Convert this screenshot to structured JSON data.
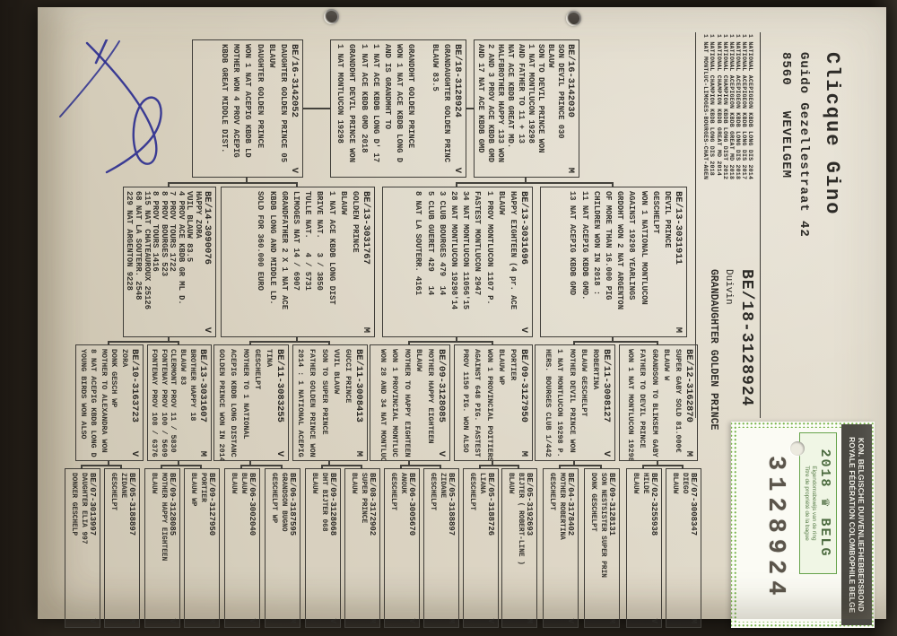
{
  "owner": {
    "name": "Clicque Gino",
    "address_line1": "Guido Gezellestraat 42",
    "address_line2": "8560   WEVELGEM"
  },
  "achievements": [
    "1 NATIONAL ACEPIGEON KBDB LONG DIS 2014",
    "1 NATIONAL ACEPIGEON KBDB LONG DIS 2017",
    "1 NATIONAL ACEPIGEON KBDB LONG DIS 2018",
    "1 NATIONAL ACEPIGEON KBDB GREAT MD 2018",
    "1 NATIONAL CHAMPION KBDB LONG DIST 2012",
    "1 NATIONAL CHAMPION KBDB GREAT MD 2014",
    "1 NATIONAL CHAMPION KBDB LONG DIS 2018",
    "1 NAT MONTLUC-LIMOGES-BOURGES-CHAT-AGEN"
  ],
  "bird": {
    "ring": "BE/18-3128924",
    "sex_label": "Duivin",
    "title": "GRANDAUGHTER GOLDEN PRINCE"
  },
  "sticker": {
    "federation_line1": "KON. BELGISCHE DUIVENLIEFHEBBERSBOND",
    "federation_line2": "ROYALE FÉDÉRATION COLOMBOPHILE BELGE",
    "year": "2018",
    "crest_icon": "crown-crest",
    "country": "BELG",
    "subtitle_nl": "Eigendomsbewijs van de ring",
    "subtitle_fr": "Titre de propriété de la bague",
    "ring_number": "3128924",
    "green": "#67a44c"
  },
  "ink_color": "#2c2f8f",
  "pedigree": {
    "gen1": [
      {
        "id": "BE/16-3142030",
        "sex": "M",
        "lines": [
          "SON DEVIL PRINCE 030",
          "BLAUW",
          "SON TO DEVIL PRINCE WON",
          "1 NAT MONTLUCON 19298",
          "AND FATHER TO 11 + 13",
          "NAT ACE KBDB GREAT MD.",
          "HALFBROTHER HAPPY 133 WON",
          "2 AND 3 PROV ACE KBDB GMD",
          "AND 17 NAT ACE KBDB GMD"
        ]
      },
      {
        "id": "BE/18-3128924",
        "sex": "V",
        "lines": [
          "GRANDAUGHTER GOLDEN PRINC",
          "BLAUW 83.5",
          "",
          "GRANDDHT GOLDEN PRINCE",
          "WON 1 NAT ACE KBDB LONG D",
          "AND IS GRANDMHT TO",
          "1 NAT ACE KBDB LONG D' 17",
          "1 NAT ACE KBDB GMD 2018",
          "GRANDDHT DEVIL PRINCE WON",
          "1 NAT MONTLUCON 19298"
        ]
      },
      {
        "id": "BE/16-3142052",
        "sex": "V",
        "lines": [
          "DAUGHTER GOLDEN PRINCE 05",
          "BLAUW",
          "DAUGHTER GOLDEN PRINCE",
          "WON 1 NAT ACEPIG KBDB LD",
          "MOTHER WON 4 PROV ACEPIG",
          "KBDB GREAT MIDDLE DIST."
        ]
      }
    ],
    "gen2": [
      {
        "id": "BE/13-3031911",
        "sex": "M",
        "lines": [
          "DEVIL PRINCE",
          "GESCHELPT",
          "WON 1 NATIONAL MONTLUCON",
          "AGAINST 19298 YEARLINGS",
          "GRDDHT WON 2 NAT ARGENTON",
          "OF MORE THAN 16.000 PIG",
          "CHILDREN WON IN 2018 :",
          "11 NAT ACEPIG KBDB GMD.",
          "13 NAT ACEPIG KBDB GMD"
        ]
      },
      {
        "id": "BE/13-3031696",
        "sex": "V",
        "lines": [
          "HAPPY EIGHTEEN (4 pr. ACE",
          "BLAUW",
          "1 PROV MONTLUCON 1107 P.",
          "FASTEST MONTLUCON 2947",
          "34 NAT MONTLUCON 11056'15",
          "28 NAT MONTLUCON 19298'14",
          "3 CLUB BOURGES 479  14",
          "5 CLUB GUERET 429   14",
          "8 NAT LA SOUTERR. 4161"
        ]
      },
      {
        "id": "BE/13-3031767",
        "sex": "M",
        "lines": [
          "GOLDEN PRINCE",
          "BLAUW",
          "1 NAT ACE KBDB LONG DIST",
          "BRIVE NAT.   3 / 3850",
          "TULLE NAT.   4 / 5731",
          "LIMOGES NAT 14 / 6907",
          "GRANDFATHER 2 X 1 NAT ACE",
          "KBDB LONG AND MIDDLE LD.",
          "SOLD FOR 360.000 EURO"
        ]
      },
      {
        "id": "BE/14-3090076",
        "sex": "V",
        "lines": [
          "HAPPY ZORA",
          "VUIL BLAUW 83.5",
          "4 PROV ACE KBDB GR ML D.",
          "7 PROV TOURS 1722",
          "8 PROV BOURGES 523",
          "8 PROV TOURS 1416",
          "115 NAT CHATEAUROUX 25126",
          "68 NAT LA SOUTERR. 2548",
          "229 NAT ARGENTON 9228"
        ]
      }
    ],
    "gen3": [
      {
        "id": "BE/12-3162870",
        "sex": "M",
        "lines": [
          "SUPER GABY SOLD 81.000€",
          "BLAUW W",
          "GRANDSON TO BLIKSEM GABY",
          "FATHER TO DEVIL PRINCE",
          "WON 1 NAT MONTLUCON 19298"
        ]
      },
      {
        "id": "BE/11-3008127",
        "sex": "V",
        "lines": [
          "ROBERTINA",
          "BLAUW GESCHELPT",
          "MOTHER DEVIL PRINCE WON",
          "1 NAT MONTLUCON 19298 P.",
          "HERS. BOURGES CLUB 1/442"
        ]
      },
      {
        "id": "BE/09-3127950",
        "sex": "M",
        "lines": [
          "PORTIER",
          "BLAUW WP",
          "WON 1 PROVINCIAL POITIERS",
          "AGAINST 648 PIG. FASTEST",
          "PROV 1150 PIG. WON ALSO"
        ]
      },
      {
        "id": "BE/09-3128085",
        "sex": "V",
        "lines": [
          "MOTHER HAPPY EIGHTEEN",
          "BLAUW",
          "MOTHER TO HAPPY EIGHTEEN",
          "WON 1 PROVINCIAL MONTLUC",
          "WON 28 AND 34 NAT MONTLUC"
        ]
      },
      {
        "id": "BE/11-3008413",
        "sex": "M",
        "lines": [
          "GUCCI PRINCE",
          "VUIL BLAUW",
          "SON TO SUPER PRINCE",
          "FATHER GOLDEN PRINCE WON",
          "2014 : 1 NATIONAL ACEPIG"
        ]
      },
      {
        "id": "BE/11-3083255",
        "sex": "V",
        "lines": [
          "TINA",
          "GESCHELPT",
          "MOTHER TO 1 NATIONAL",
          "ACEPIG KBDB LONG DISTANC",
          "GOLDEN PRINCE WON IN 2014"
        ]
      },
      {
        "id": "BE/13-3031607",
        "sex": "M",
        "lines": [
          "BROTHER HAPPY 18",
          "BLAUW 83",
          "CLERMONT PROV 11 / 5830",
          "FONTENAY PROV 100 / 5609",
          "FONTENAY PROV 108 / 6376"
        ]
      },
      {
        "id": "BE/10-3163723",
        "sex": "V",
        "lines": [
          "ZORA",
          "DONK GESCH WP",
          "MOTHER TO ALEXANDRA WON",
          "8 NAT ACEPIG KBDB LONG D",
          "YOUNG BIRDS WON ALSO"
        ]
      }
    ],
    "gen4": [
      {
        "id": "BE/07-3008347",
        "sex": "M",
        "lines": [
          "DIEGO",
          "BLAUW"
        ]
      },
      {
        "id": "BE/02-3255938",
        "sex": "V",
        "lines": [
          "HILDE",
          "BLAUW"
        ]
      },
      {
        "id": "BE/09-3128131",
        "sex": "M",
        "lines": [
          "SON NESTSISTER SUPER PRIN",
          "DONK GESCHELPT"
        ]
      },
      {
        "id": "BE/04-3178402",
        "sex": "V",
        "lines": [
          "MOTHER ROBERTINA",
          "GESCHELPT"
        ]
      },
      {
        "id": "BE/05-3192693",
        "sex": "M",
        "lines": [
          "BIJTER ( ROBERT-LINE )",
          "BLAUW"
        ]
      },
      {
        "id": "BE/05-3188726",
        "sex": "V",
        "lines": [
          "LIANA",
          "GESCHELPT"
        ]
      },
      {
        "id": "BE/05-3188897",
        "sex": "M",
        "lines": [
          "ZIDANE",
          "GESCHELPT"
        ]
      },
      {
        "id": "BE/06-3005670",
        "sex": "V",
        "lines": [
          "ANOUK",
          "GESCHELPT"
        ]
      },
      {
        "id": "BE/08-3172902",
        "sex": "M",
        "lines": [
          "SUPER PRINCE",
          "BLAUW"
        ]
      },
      {
        "id": "BE/09-3128068",
        "sex": "V",
        "lines": [
          "DHT BIJTER 068",
          "BLAUW"
        ]
      },
      {
        "id": "BE/06-3187595",
        "sex": "M",
        "lines": [
          "GRANDSON BUGNO",
          "GESCHELPT WP"
        ]
      },
      {
        "id": "BE/06-3002040",
        "sex": "V",
        "lines": [
          "BLAUW",
          "BLAUW"
        ]
      },
      {
        "id": "BE/09-3127950",
        "sex": "M",
        "lines": [
          "PORTIER",
          "BLAUW WP"
        ]
      },
      {
        "id": "BE/09-3128085",
        "sex": "V",
        "lines": [
          "MOTHER HAPPY EIGHTEEN",
          "BLAUW"
        ]
      },
      {
        "id": "BE/05-3188897",
        "sex": "M",
        "lines": [
          "ZIDANE",
          "GESCHELPT"
        ]
      },
      {
        "id": "BE/07-3013997",
        "sex": "V",
        "lines": [
          "DAUGHTER ELIA 997",
          "DONKER GESCHELP"
        ]
      }
    ]
  }
}
